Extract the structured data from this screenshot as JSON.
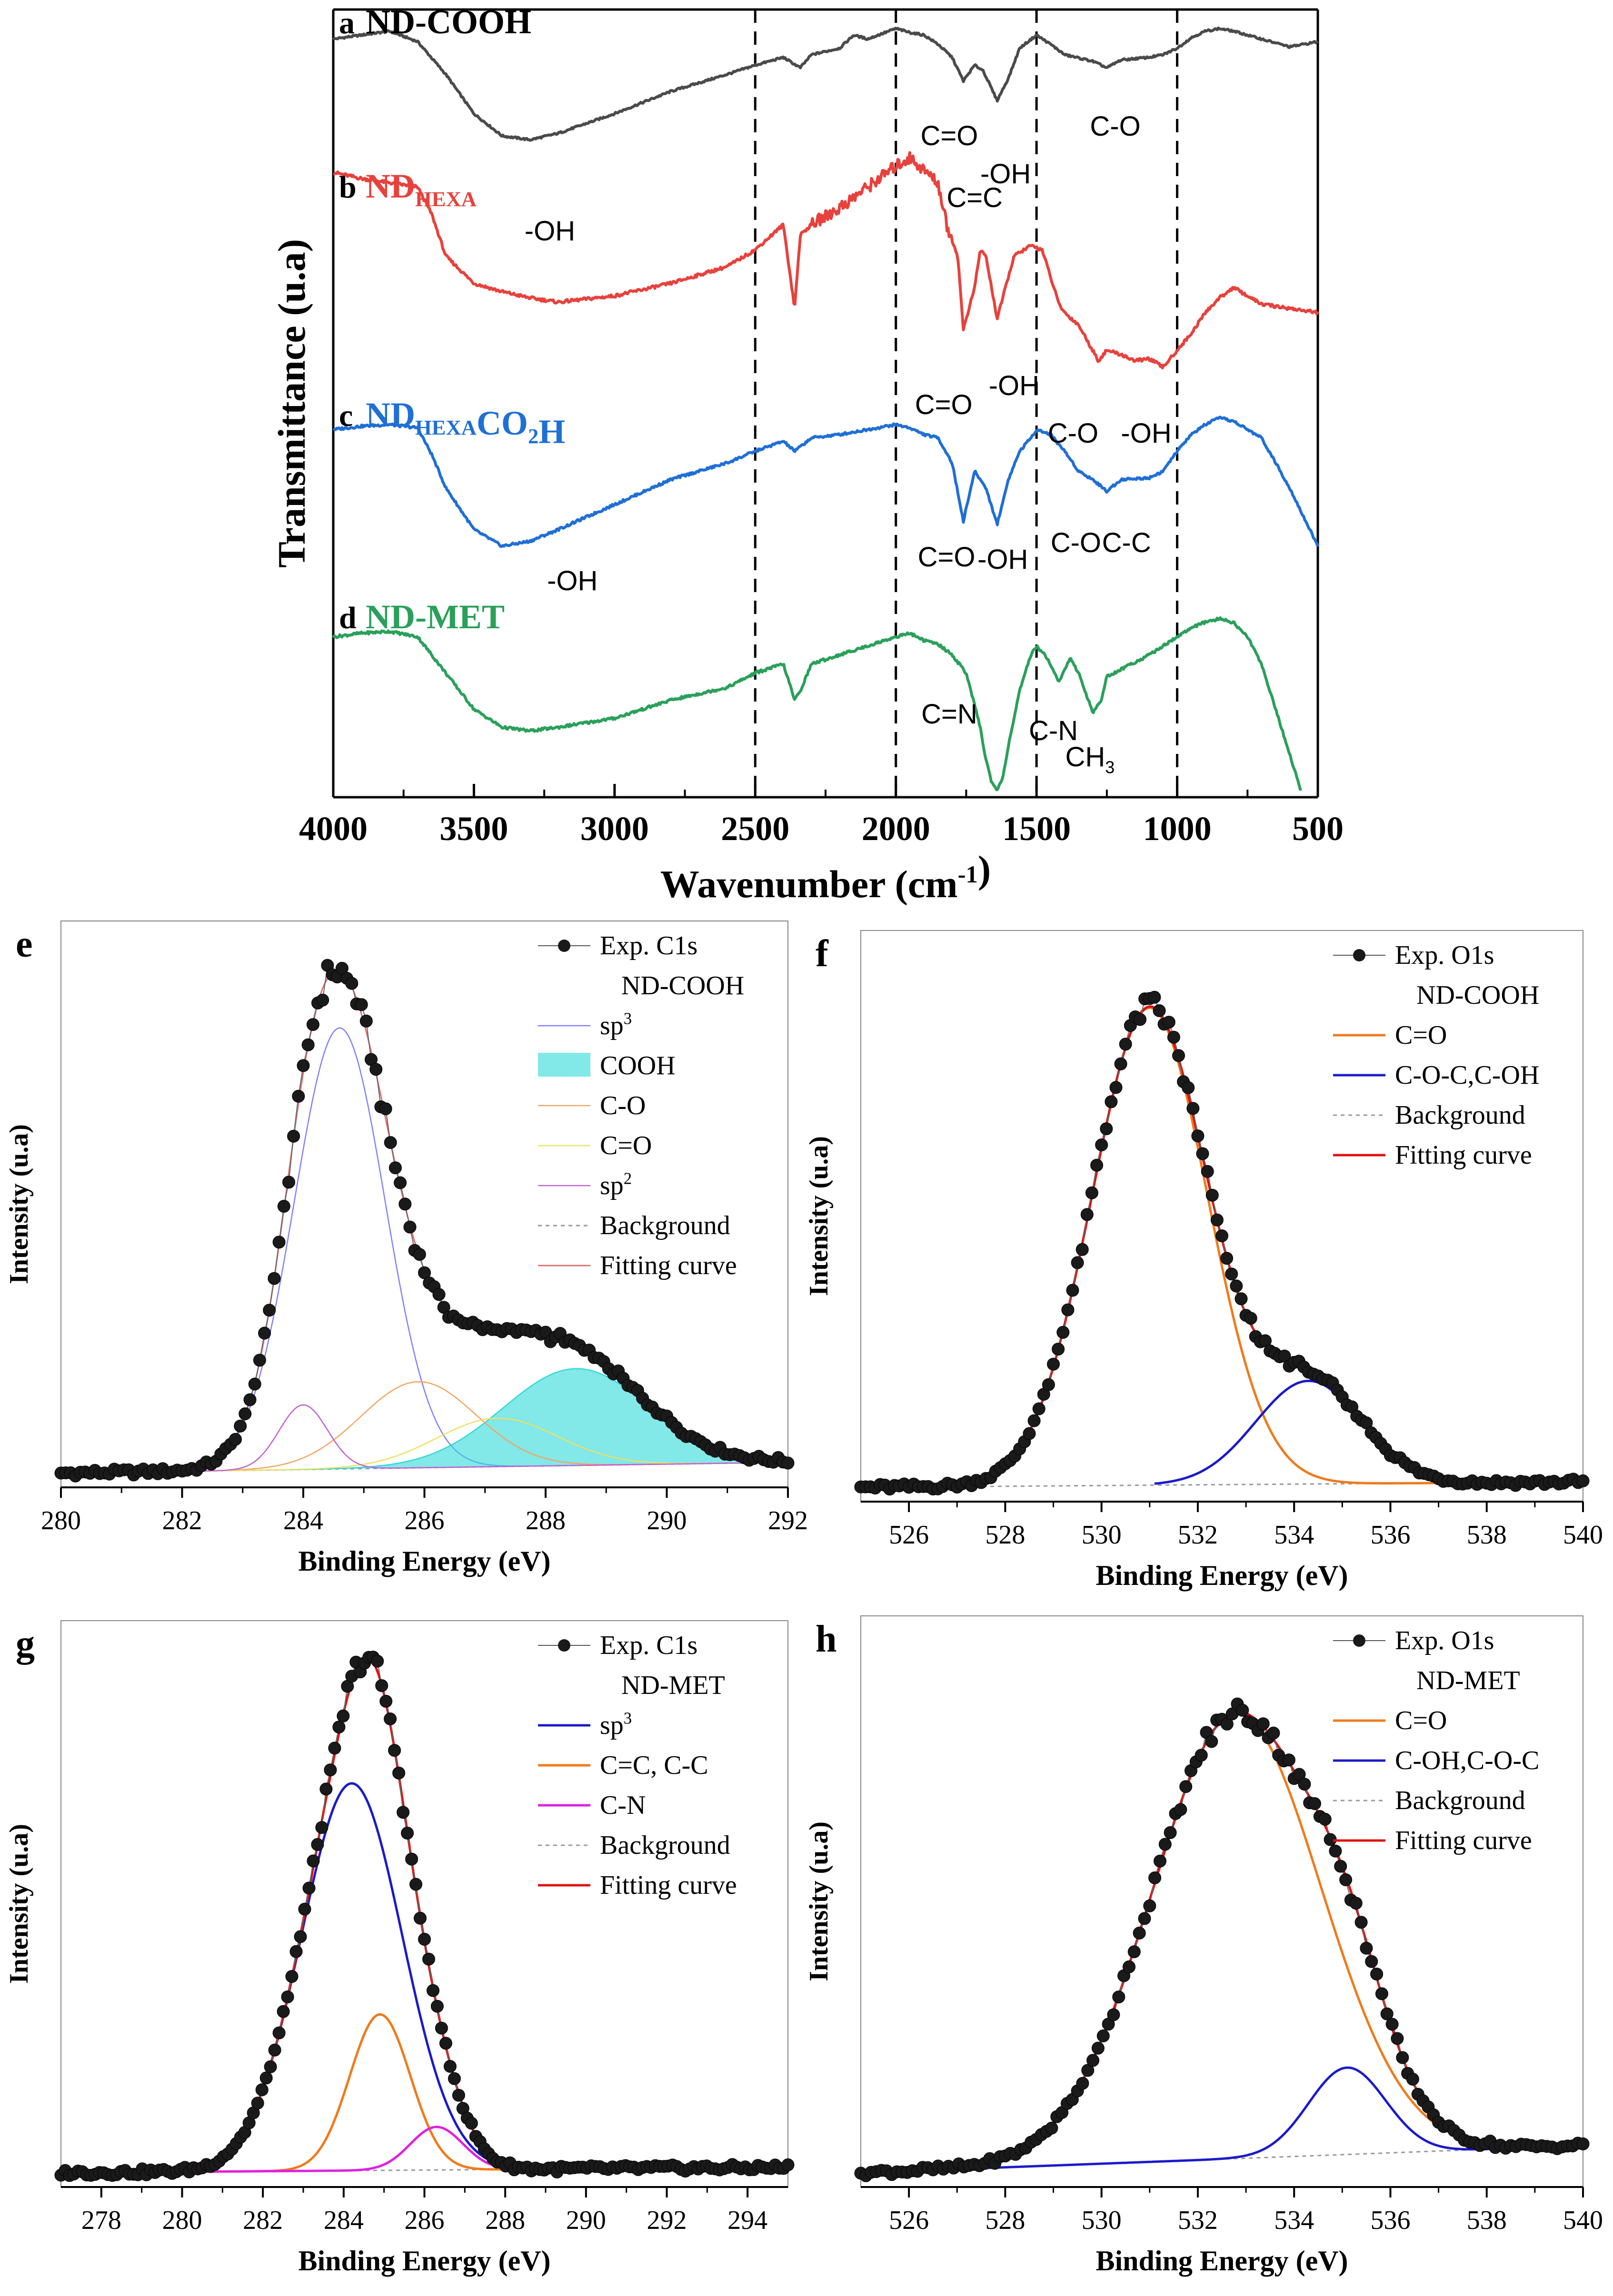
{
  "chart_data": [
    {
      "panel": "ftir",
      "type": "line",
      "xlabel": "Wavenumber (cm",
      "xlabel_sup": "-1",
      "xlabel_end": ")",
      "ylabel": "Transmittance (u.a)",
      "xlim": [
        4000,
        500
      ],
      "xticks": [
        "4000",
        "3500",
        "3000",
        "2500",
        "2000",
        "1500",
        "1000",
        "500"
      ],
      "dashed_lines_x": [
        2500,
        2000,
        1500,
        1000
      ],
      "grid": false,
      "series": [
        {
          "letter": "a",
          "name": "ND-COOH",
          "color": "#4a4a4a",
          "x": [
            4000,
            3900,
            3800,
            3700,
            3600,
            3500,
            3400,
            3300,
            3200,
            3000,
            2800,
            2600,
            2500,
            2400,
            2340,
            2300,
            2200,
            2150,
            2100,
            2050,
            2000,
            1950,
            1900,
            1850,
            1800,
            1760,
            1720,
            1690,
            1640,
            1600,
            1560,
            1500,
            1450,
            1400,
            1300,
            1250,
            1200,
            1100,
            1050,
            1000,
            950,
            900,
            850,
            800,
            700,
            600,
            500
          ],
          "y": [
            0.92,
            0.95,
            0.98,
            0.9,
            0.65,
            0.35,
            0.18,
            0.15,
            0.2,
            0.35,
            0.52,
            0.65,
            0.72,
            0.78,
            0.7,
            0.8,
            0.85,
            0.95,
            0.92,
            0.96,
            1.0,
            0.97,
            0.95,
            0.88,
            0.78,
            0.6,
            0.72,
            0.68,
            0.45,
            0.62,
            0.85,
            0.95,
            0.88,
            0.8,
            0.75,
            0.7,
            0.76,
            0.78,
            0.8,
            0.85,
            0.93,
            0.98,
            1.0,
            0.98,
            0.92,
            0.86,
            0.9
          ]
        },
        {
          "letter": "b",
          "name": "ND",
          "name_sub": "HEXA",
          "color": "#e8413c",
          "x": [
            4000,
            3900,
            3800,
            3700,
            3650,
            3600,
            3500,
            3400,
            3300,
            3200,
            3000,
            2800,
            2600,
            2500,
            2400,
            2360,
            2340,
            2300,
            2200,
            2100,
            2000,
            1950,
            1900,
            1850,
            1820,
            1780,
            1760,
            1720,
            1700,
            1680,
            1640,
            1620,
            1580,
            1520,
            1480,
            1420,
            1400,
            1350,
            1280,
            1250,
            1200,
            1150,
            1100,
            1050,
            1000,
            950,
            900,
            850,
            800,
            700,
            600,
            500
          ],
          "y": [
            0.95,
            0.92,
            0.9,
            0.88,
            0.75,
            0.55,
            0.42,
            0.38,
            0.35,
            0.33,
            0.36,
            0.42,
            0.5,
            0.58,
            0.7,
            0.3,
            0.65,
            0.7,
            0.78,
            0.88,
            0.98,
            1.02,
            0.96,
            0.9,
            0.7,
            0.55,
            0.2,
            0.4,
            0.58,
            0.55,
            0.25,
            0.35,
            0.55,
            0.6,
            0.58,
            0.32,
            0.28,
            0.22,
            0.05,
            0.1,
            0.08,
            0.05,
            0.06,
            0.02,
            0.1,
            0.18,
            0.28,
            0.35,
            0.4,
            0.32,
            0.3,
            0.28
          ]
        },
        {
          "letter": "c",
          "name": "ND",
          "name_sub": "HEXA",
          "name_end": "CO",
          "name_sub2": "2",
          "name_tail": "H",
          "color": "#1f6fd6",
          "x": [
            4000,
            3900,
            3800,
            3700,
            3650,
            3600,
            3500,
            3400,
            3300,
            3200,
            3000,
            2800,
            2600,
            2500,
            2400,
            2360,
            2300,
            2200,
            2100,
            2000,
            1950,
            1900,
            1850,
            1800,
            1760,
            1720,
            1700,
            1680,
            1640,
            1600,
            1560,
            1520,
            1500,
            1450,
            1400,
            1350,
            1300,
            1250,
            1200,
            1100,
            1050,
            1000,
            950,
            900,
            850,
            800,
            700,
            600,
            500
          ],
          "y": [
            0.85,
            0.87,
            0.88,
            0.86,
            0.7,
            0.5,
            0.25,
            0.15,
            0.18,
            0.25,
            0.4,
            0.55,
            0.65,
            0.72,
            0.78,
            0.72,
            0.8,
            0.82,
            0.85,
            0.88,
            0.86,
            0.82,
            0.8,
            0.65,
            0.3,
            0.6,
            0.55,
            0.5,
            0.28,
            0.55,
            0.72,
            0.8,
            0.85,
            0.82,
            0.72,
            0.6,
            0.55,
            0.48,
            0.55,
            0.56,
            0.6,
            0.72,
            0.82,
            0.88,
            0.92,
            0.9,
            0.8,
            0.5,
            0.15
          ]
        },
        {
          "letter": "d",
          "name": "ND-MET",
          "color": "#2aa05a",
          "x": [
            4000,
            3900,
            3800,
            3700,
            3600,
            3500,
            3400,
            3300,
            3200,
            3000,
            2800,
            2600,
            2500,
            2400,
            2360,
            2340,
            2300,
            2200,
            2100,
            2000,
            1950,
            1900,
            1850,
            1800,
            1750,
            1700,
            1680,
            1660,
            1640,
            1620,
            1600,
            1560,
            1520,
            1500,
            1460,
            1420,
            1400,
            1380,
            1350,
            1300,
            1270,
            1250,
            1200,
            1100,
            1050,
            1000,
            950,
            900,
            850,
            800,
            750,
            700,
            650,
            600,
            560
          ],
          "y": [
            0.9,
            0.92,
            0.93,
            0.9,
            0.7,
            0.5,
            0.4,
            0.38,
            0.4,
            0.45,
            0.55,
            0.62,
            0.7,
            0.75,
            0.55,
            0.6,
            0.75,
            0.8,
            0.85,
            0.9,
            0.92,
            0.88,
            0.86,
            0.8,
            0.7,
            0.4,
            0.22,
            0.1,
            0.05,
            0.12,
            0.3,
            0.6,
            0.8,
            0.85,
            0.78,
            0.65,
            0.72,
            0.78,
            0.7,
            0.48,
            0.55,
            0.68,
            0.72,
            0.8,
            0.85,
            0.9,
            0.95,
            0.98,
            1.0,
            0.98,
            0.9,
            0.75,
            0.5,
            0.25,
            0.05
          ]
        }
      ],
      "annotations": [
        {
          "text": "-OH",
          "x": 3230,
          "row": "a"
        },
        {
          "text": "C=O",
          "x": 1810,
          "row": "a"
        },
        {
          "text": "-OH",
          "x": 1610,
          "row": "a2"
        },
        {
          "text": "C=C",
          "x": 1720,
          "row": "a3"
        },
        {
          "text": "C-O",
          "x": 1220,
          "row": "a"
        },
        {
          "text": "C=O",
          "x": 1830,
          "row": "b"
        },
        {
          "text": "-OH",
          "x": 1580,
          "row": "b"
        },
        {
          "text": "C-O",
          "x": 1370,
          "row": "b2"
        },
        {
          "text": "-OH",
          "x": 1110,
          "row": "b2"
        },
        {
          "text": "-OH",
          "x": 3150,
          "row": "c"
        },
        {
          "text": "C=O",
          "x": 1820,
          "row": "c"
        },
        {
          "text": "-OH",
          "x": 1620,
          "row": "c"
        },
        {
          "text": "C-O",
          "x": 1360,
          "row": "c2"
        },
        {
          "text": "C-C",
          "x": 1180,
          "row": "c2"
        },
        {
          "text": "C=N",
          "x": 1810,
          "row": "d"
        },
        {
          "text": "C-N",
          "x": 1440,
          "row": "d"
        },
        {
          "text": "CH",
          "sub": "3",
          "x": 1310,
          "row": "d2"
        }
      ]
    },
    {
      "panel": "e",
      "type": "line",
      "xlabel": "Binding Energy (eV)",
      "ylabel": "Intensity (u.a)",
      "xlim": [
        280,
        292
      ],
      "xticks": [
        "280",
        "282",
        "284",
        "286",
        "288",
        "290",
        "292"
      ],
      "legend": [
        "Exp. C1s",
        "ND-COOH",
        "sp",
        "COOH",
        "C-O",
        "C=O",
        "sp",
        "Background",
        "Fitting curve"
      ],
      "legend_sup": {
        "2": "3",
        "6": "2"
      },
      "peaks": [
        {
          "name": "sp3",
          "center": 284.6,
          "height": 0.82,
          "width": 0.75,
          "color": "#8080ff"
        },
        {
          "name": "COOH",
          "center": 288.5,
          "height": 0.18,
          "width": 1.2,
          "color": "#2fd9d9",
          "fill": true
        },
        {
          "name": "C-O",
          "center": 285.9,
          "height": 0.16,
          "width": 0.95,
          "color": "#f4a460"
        },
        {
          "name": "C=O",
          "center": 287.2,
          "height": 0.09,
          "width": 1.0,
          "color": "#f0e060"
        },
        {
          "name": "sp2",
          "center": 284.0,
          "height": 0.12,
          "width": 0.4,
          "color": "#c060d0"
        }
      ],
      "background": 0.02,
      "exp_name": "Exp. C1s"
    },
    {
      "panel": "f",
      "type": "line",
      "xlabel": "Binding Energy (eV)",
      "ylabel": "Intensity (u.a)",
      "xlim": [
        525,
        540
      ],
      "xticks": [
        "526",
        "528",
        "530",
        "532",
        "534",
        "536",
        "538",
        "540"
      ],
      "legend": [
        "Exp. O1s",
        "ND-COOH",
        "C=O",
        "C-O-C,C-OH",
        "Background",
        "Fitting curve"
      ],
      "peaks": [
        {
          "name": "C=O",
          "center": 531.0,
          "height": 0.88,
          "width": 1.2,
          "color": "#f07a1a"
        },
        {
          "name": "C-O-C,C-OH",
          "center": 534.3,
          "height": 0.19,
          "width": 1.1,
          "color": "#1a1acc",
          "start": 531.1
        }
      ],
      "background": 0.01
    },
    {
      "panel": "g",
      "type": "line",
      "xlabel": "Binding Energy (eV)",
      "ylabel": "Intensity (u.a)",
      "xlim": [
        277,
        295
      ],
      "xticks": [
        "278",
        "280",
        "282",
        "284",
        "286",
        "288",
        "290",
        "292",
        "294"
      ],
      "legend": [
        "Exp. C1s",
        "ND-MET",
        "sp",
        "C=C, C-C",
        "C-N",
        "Background",
        "Fitting curve"
      ],
      "legend_sup": {
        "2": "3"
      },
      "peaks": [
        {
          "name": "sp3",
          "center": 284.2,
          "height": 0.72,
          "width": 1.25,
          "color": "#1a1acc"
        },
        {
          "name": "C=C, C-C",
          "center": 284.9,
          "height": 0.29,
          "width": 0.75,
          "color": "#f07a1a"
        },
        {
          "name": "C-N",
          "center": 286.3,
          "height": 0.08,
          "width": 0.65,
          "color": "#e020e0"
        }
      ],
      "background": 0.01
    },
    {
      "panel": "h",
      "type": "line",
      "xlabel": "Binding Energy (eV)",
      "ylabel": "Intensity (u.a)",
      "xlim": [
        525,
        540
      ],
      "xticks": [
        "526",
        "528",
        "530",
        "532",
        "534",
        "536",
        "538",
        "540"
      ],
      "legend": [
        "Exp. O1s",
        "ND-MET",
        "C=O",
        "C-OH,C-O-C",
        "Background",
        "Fitting curve"
      ],
      "peaks": [
        {
          "name": "C=O",
          "center": 532.8,
          "height": 0.82,
          "width": 1.75,
          "color": "#f07a1a"
        },
        {
          "name": "C-OH,C-O-C",
          "center": 535.1,
          "height": 0.16,
          "width": 0.8,
          "color": "#1a1acc"
        }
      ],
      "background": 0.05
    }
  ]
}
